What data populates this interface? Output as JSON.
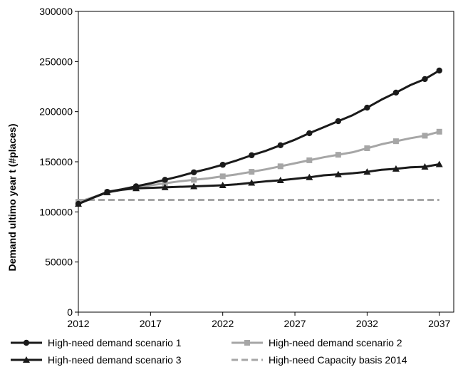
{
  "chart_data": {
    "type": "line",
    "title": "",
    "xlabel": "",
    "ylabel": "Demand ultimo year t (#places)",
    "xlim": [
      2012,
      2038
    ],
    "ylim": [
      0,
      300000
    ],
    "x_ticks": [
      2012,
      2017,
      2022,
      2027,
      2032,
      2037
    ],
    "y_ticks": [
      0,
      50000,
      100000,
      150000,
      200000,
      250000,
      300000
    ],
    "x_tick_labels": [
      "2012",
      "2017",
      "2022",
      "2027",
      "2032",
      "2037"
    ],
    "y_tick_labels": [
      "0",
      "50000",
      "100000",
      "150000",
      "200000",
      "250000",
      "300000"
    ],
    "grid": false,
    "legend_position": "bottom",
    "series": [
      {
        "name": "High-need demand scenario 1",
        "color": "#1a1a1a",
        "style": "solid",
        "marker": "circle",
        "points": [
          [
            2012,
            108000
          ],
          [
            2013,
            114000
          ],
          [
            2014,
            120000
          ],
          [
            2015,
            122500
          ],
          [
            2016,
            125500
          ],
          [
            2017,
            128500
          ],
          [
            2018,
            132000
          ],
          [
            2019,
            135500
          ],
          [
            2020,
            139500
          ],
          [
            2021,
            143000
          ],
          [
            2022,
            147000
          ],
          [
            2023,
            151500
          ],
          [
            2024,
            156500
          ],
          [
            2025,
            161000
          ],
          [
            2026,
            166500
          ],
          [
            2027,
            172000
          ],
          [
            2028,
            178500
          ],
          [
            2029,
            184500
          ],
          [
            2030,
            190500
          ],
          [
            2031,
            196500
          ],
          [
            2032,
            204000
          ],
          [
            2033,
            212000
          ],
          [
            2034,
            219000
          ],
          [
            2035,
            226500
          ],
          [
            2036,
            232500
          ],
          [
            2037,
            241000
          ]
        ]
      },
      {
        "name": "High-need demand scenario 2",
        "color": "#a6a6a6",
        "style": "solid",
        "marker": "square",
        "points": [
          [
            2012,
            110000
          ],
          [
            2013,
            114500
          ],
          [
            2014,
            119500
          ],
          [
            2015,
            122500
          ],
          [
            2016,
            124500
          ],
          [
            2017,
            126500
          ],
          [
            2018,
            128500
          ],
          [
            2019,
            130500
          ],
          [
            2020,
            132000
          ],
          [
            2021,
            133500
          ],
          [
            2022,
            135500
          ],
          [
            2023,
            137500
          ],
          [
            2024,
            140000
          ],
          [
            2025,
            142500
          ],
          [
            2026,
            145500
          ],
          [
            2027,
            148500
          ],
          [
            2028,
            151500
          ],
          [
            2029,
            154500
          ],
          [
            2030,
            157000
          ],
          [
            2031,
            159500
          ],
          [
            2032,
            163500
          ],
          [
            2033,
            167500
          ],
          [
            2034,
            170500
          ],
          [
            2035,
            173500
          ],
          [
            2036,
            176000
          ],
          [
            2037,
            180000
          ]
        ]
      },
      {
        "name": "High-need demand scenario 3",
        "color": "#1a1a1a",
        "style": "solid",
        "marker": "triangle",
        "points": [
          [
            2012,
            108000
          ],
          [
            2013,
            114000
          ],
          [
            2014,
            119500
          ],
          [
            2015,
            122000
          ],
          [
            2016,
            123500
          ],
          [
            2017,
            124000
          ],
          [
            2018,
            124500
          ],
          [
            2019,
            125000
          ],
          [
            2020,
            125500
          ],
          [
            2021,
            126000
          ],
          [
            2022,
            126500
          ],
          [
            2023,
            127500
          ],
          [
            2024,
            129000
          ],
          [
            2025,
            130500
          ],
          [
            2026,
            131500
          ],
          [
            2027,
            133000
          ],
          [
            2028,
            134500
          ],
          [
            2029,
            136500
          ],
          [
            2030,
            137500
          ],
          [
            2031,
            138500
          ],
          [
            2032,
            140000
          ],
          [
            2033,
            142000
          ],
          [
            2034,
            143000
          ],
          [
            2035,
            144500
          ],
          [
            2036,
            145000
          ],
          [
            2037,
            147500
          ]
        ]
      },
      {
        "name": "High-need Capacity basis 2014",
        "color": "#a6a6a6",
        "style": "dashed",
        "marker": "none",
        "points": [
          [
            2012,
            112000
          ],
          [
            2037,
            112000
          ]
        ]
      }
    ]
  }
}
